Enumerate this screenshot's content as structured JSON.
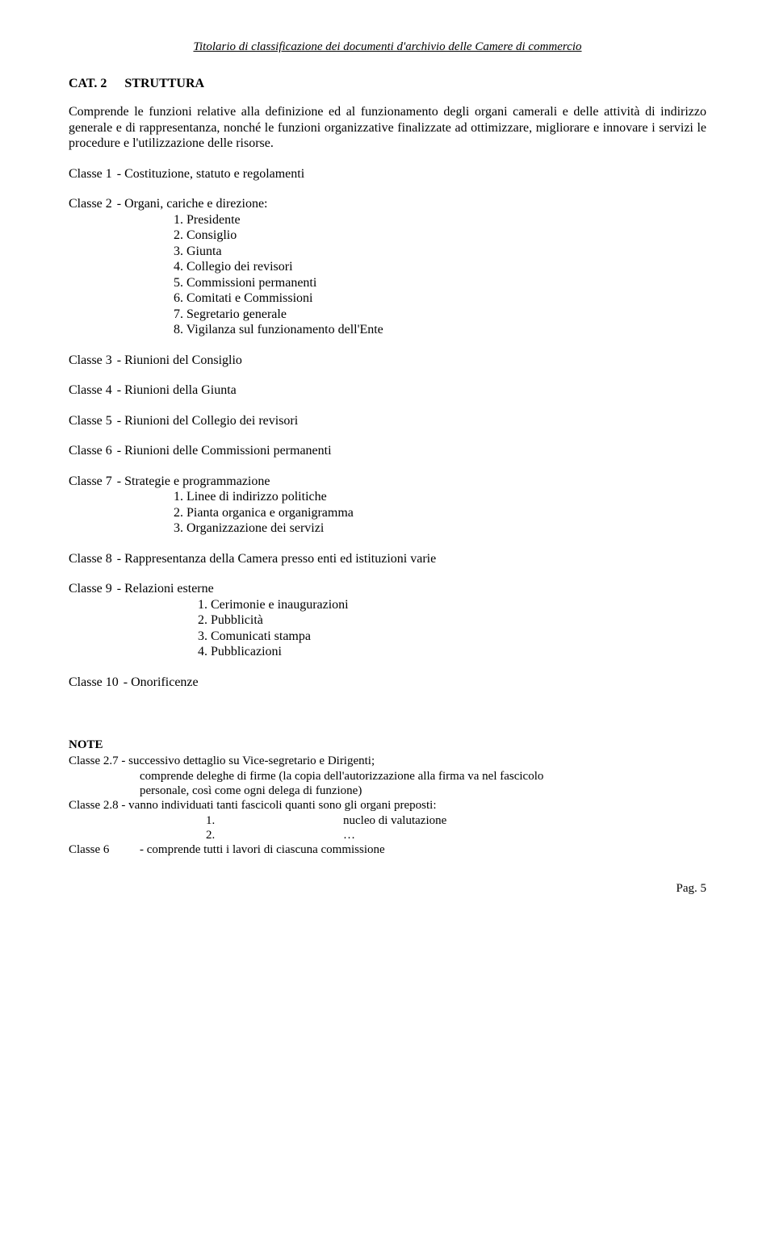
{
  "header": "Titolario di classificazione dei documenti d'archivio delle Camere di commercio",
  "section": {
    "cat": "CAT. 2",
    "title": "STRUTTURA"
  },
  "intro": "Comprende le funzioni relative alla definizione ed al funzionamento degli organi camerali e delle attività di indirizzo generale e di rappresentanza, nonché le funzioni organizzative finalizzate ad ottimizzare, migliorare e innovare i servizi le procedure e l'utilizzazione delle risorse.",
  "classes": {
    "c1": {
      "label": "Classe 1",
      "desc": "- Costituzione, statuto e regolamenti"
    },
    "c2": {
      "label": "Classe 2",
      "desc": "- Organi, cariche e direzione:",
      "i1": "1.  Presidente",
      "i2": "2.  Consiglio",
      "i3": "3.  Giunta",
      "i4": "4.  Collegio dei revisori",
      "i5": "5.  Commissioni permanenti",
      "i6": "6.  Comitati e Commissioni",
      "i7": "7.  Segretario generale",
      "i8": "8.  Vigilanza sul funzionamento dell'Ente"
    },
    "c3": {
      "label": "Classe 3",
      "desc": "- Riunioni del Consiglio"
    },
    "c4": {
      "label": "Classe 4",
      "desc": "- Riunioni della Giunta"
    },
    "c5": {
      "label": "Classe 5",
      "desc": "- Riunioni del Collegio dei revisori"
    },
    "c6": {
      "label": "Classe 6",
      "desc": "- Riunioni delle Commissioni permanenti"
    },
    "c7": {
      "label": "Classe 7",
      "desc": "- Strategie e programmazione",
      "i1": "1.  Linee di indirizzo politiche",
      "i2": "2.  Pianta organica e organigramma",
      "i3": "3.  Organizzazione dei servizi"
    },
    "c8": {
      "label": "Classe 8",
      "desc": "- Rappresentanza della Camera presso enti ed istituzioni varie"
    },
    "c9": {
      "label": "Classe 9",
      "desc": "- Relazioni esterne",
      "i1": "1.  Cerimonie e inaugurazioni",
      "i2": "2.  Pubblicità",
      "i3": "3.  Comunicati stampa",
      "i4": "4.  Pubblicazioni"
    },
    "c10": {
      "label": "Classe 10",
      "desc": "- Onorificenze"
    }
  },
  "notes": {
    "heading": "NOTE",
    "n27a": "Classe 2.7  - successivo dettaglio su Vice-segretario e  Dirigenti;",
    "n27b": "comprende deleghe di firme  (la copia dell'autorizzazione alla firma va nel fascicolo",
    "n27c": "personale, così come ogni delega di funzione)",
    "n28a": "Classe 2.8  - vanno individuati tanti fascicoli quanti sono gli organi preposti:",
    "n28_e1n": "1.",
    "n28_e1t": "nucleo di valutazione",
    "n28_e2n": "2.",
    "n28_e2t": "…",
    "n6_label": "Classe 6",
    "n6_text": "- comprende tutti i lavori di ciascuna  commissione"
  },
  "footer": "Pag. 5"
}
